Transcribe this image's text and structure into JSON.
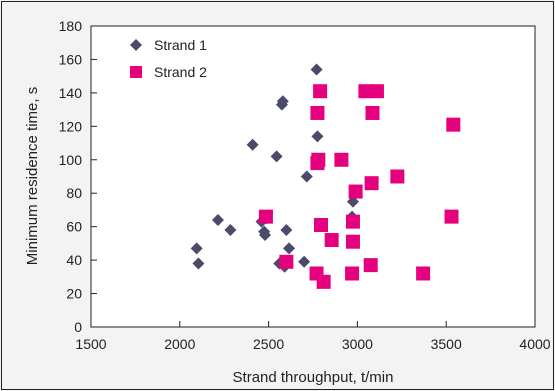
{
  "chart_data": {
    "type": "scatter",
    "title": "",
    "xlabel": "Strand throughput, t/min",
    "ylabel": "Minimum residence time, s",
    "xlim": [
      1500,
      4000
    ],
    "ylim": [
      0,
      180
    ],
    "xticks": [
      "1500",
      "2000",
      "2500",
      "3000",
      "3500",
      "4000"
    ],
    "yticks": [
      "0",
      "20",
      "40",
      "60",
      "80",
      "100",
      "120",
      "140",
      "160",
      "180"
    ],
    "grid": false,
    "legend": "top-left",
    "series": [
      {
        "name": "Strand 1",
        "marker": "diamond",
        "color": "#4a4a6a",
        "points": [
          [
            2095,
            47
          ],
          [
            2105,
            38
          ],
          [
            2215,
            64
          ],
          [
            2285,
            58
          ],
          [
            2410,
            109
          ],
          [
            2460,
            63
          ],
          [
            2475,
            57
          ],
          [
            2480,
            55
          ],
          [
            2485,
            65
          ],
          [
            2545,
            102
          ],
          [
            2560,
            38
          ],
          [
            2575,
            133
          ],
          [
            2580,
            135
          ],
          [
            2590,
            36
          ],
          [
            2600,
            58
          ],
          [
            2615,
            47
          ],
          [
            2700,
            39
          ],
          [
            2715,
            90
          ],
          [
            2770,
            154
          ],
          [
            2775,
            114
          ],
          [
            2970,
            66
          ],
          [
            2975,
            75
          ]
        ]
      },
      {
        "name": "Strand 2",
        "marker": "square",
        "color": "#e5007e",
        "points": [
          [
            2485,
            66
          ],
          [
            2600,
            39
          ],
          [
            2770,
            32
          ],
          [
            2775,
            128
          ],
          [
            2775,
            98
          ],
          [
            2780,
            100
          ],
          [
            2790,
            141
          ],
          [
            2795,
            61
          ],
          [
            2810,
            27
          ],
          [
            2855,
            52
          ],
          [
            2910,
            100
          ],
          [
            2970,
            32
          ],
          [
            2975,
            63
          ],
          [
            2975,
            51
          ],
          [
            2990,
            81
          ],
          [
            3045,
            141
          ],
          [
            3075,
            37
          ],
          [
            3080,
            86
          ],
          [
            3085,
            128
          ],
          [
            3110,
            141
          ],
          [
            3225,
            90
          ],
          [
            3370,
            32
          ],
          [
            3530,
            66
          ],
          [
            3540,
            121
          ]
        ]
      }
    ]
  }
}
